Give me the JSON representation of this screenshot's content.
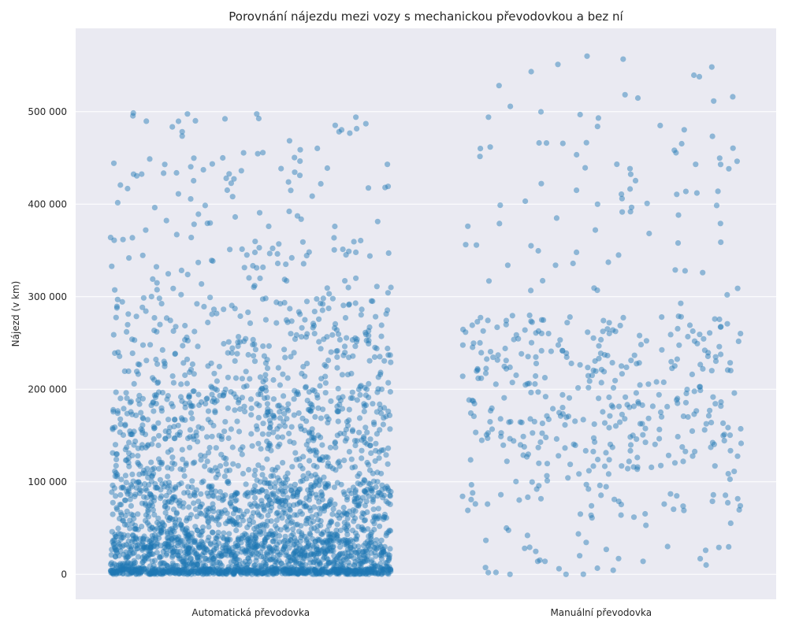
{
  "chart_data": {
    "type": "scatter",
    "title": "Porovnání nájezdu mezi vozy s mechanickou převodovkou a bez ní",
    "xlabel": "",
    "ylabel": "Nájezd (v km)",
    "categories": [
      "Automatická převodovka",
      "Manuální převodovka"
    ],
    "ylim": [
      -27000,
      590000
    ],
    "yticks": [
      0,
      100000,
      200000,
      300000,
      400000,
      500000
    ],
    "ytick_labels": [
      "0",
      "100 000",
      "200 000",
      "300 000",
      "400 000",
      "500 000"
    ],
    "grid": true,
    "point_color": "#1f77b4",
    "point_opacity": 0.45,
    "background_color": "#eaeaf2",
    "series": [
      {
        "category": "Automatická převodovka",
        "approx_count": 3000,
        "values_note_visible": false,
        "notable_points": [
          {
            "x_jitter": -0.08,
            "y": 450000
          },
          {
            "x_jitter": -0.07,
            "y": 428000
          },
          {
            "x_jitter": 0.3,
            "y": 494000
          },
          {
            "x_jitter": 0.39,
            "y": 443000
          },
          {
            "x_jitter": 0.2,
            "y": 422000
          },
          {
            "x_jitter": 0.24,
            "y": 376000
          },
          {
            "x_jitter": -0.3,
            "y": 372000
          },
          {
            "x_jitter": -0.4,
            "y": 364000
          },
          {
            "x_jitter": -0.39,
            "y": 361000
          },
          {
            "x_jitter": -0.17,
            "y": 364000
          },
          {
            "x_jitter": 0.08,
            "y": 357000
          },
          {
            "x_jitter": -0.06,
            "y": 351000
          },
          {
            "x_jitter": 0.28,
            "y": 349000
          },
          {
            "x_jitter": 0.34,
            "y": 344000
          },
          {
            "x_jitter": 0.3,
            "y": 348000
          },
          {
            "x_jitter": -0.15,
            "y": 337000
          },
          {
            "x_jitter": -0.18,
            "y": 324000
          },
          {
            "x_jitter": 0.1,
            "y": 335000
          },
          {
            "x_jitter": 0.3,
            "y": 320000
          },
          {
            "x_jitter": 0.36,
            "y": 311000
          },
          {
            "x_jitter": 0.4,
            "y": 310000
          },
          {
            "x_jitter": -0.38,
            "y": 297000
          },
          {
            "x_jitter": -0.28,
            "y": 319000
          }
        ],
        "density_bands": [
          {
            "y_from": 0,
            "y_to": 40000,
            "density": "very high"
          },
          {
            "y_from": 40000,
            "y_to": 100000,
            "density": "high"
          },
          {
            "y_from": 100000,
            "y_to": 200000,
            "density": "medium"
          },
          {
            "y_from": 200000,
            "y_to": 300000,
            "density": "low"
          },
          {
            "y_from": 300000,
            "y_to": 500000,
            "density": "sparse"
          }
        ]
      },
      {
        "category": "Manuální převodovka",
        "approx_count": 480,
        "notable_points": [
          {
            "x_jitter": -0.04,
            "y": 560000
          },
          {
            "x_jitter": -0.01,
            "y": 484000
          },
          {
            "x_jitter": 0.27,
            "y": 443000
          },
          {
            "x_jitter": -0.07,
            "y": 415000
          },
          {
            "x_jitter": 0.06,
            "y": 406000
          },
          {
            "x_jitter": -0.01,
            "y": 400000
          },
          {
            "x_jitter": -0.29,
            "y": 379000
          },
          {
            "x_jitter": 0.22,
            "y": 358000
          },
          {
            "x_jitter": -0.2,
            "y": 355000
          },
          {
            "x_jitter": -0.07,
            "y": 348000
          },
          {
            "x_jitter": 0.05,
            "y": 345000
          },
          {
            "x_jitter": -0.08,
            "y": 336000
          },
          {
            "x_jitter": 0.24,
            "y": 328000
          },
          {
            "x_jitter": 0.29,
            "y": 326000
          },
          {
            "x_jitter": -0.13,
            "y": 334000
          },
          {
            "x_jitter": -0.32,
            "y": 317000
          },
          {
            "x_jitter": 0.39,
            "y": 309000
          },
          {
            "x_jitter": 0.36,
            "y": 302000
          },
          {
            "x_jitter": -0.26,
            "y": 0
          },
          {
            "x_jitter": -0.3,
            "y": 2000
          },
          {
            "x_jitter": -0.1,
            "y": 0
          },
          {
            "x_jitter": -0.12,
            "y": 6000
          },
          {
            "x_jitter": -0.16,
            "y": 14000
          },
          {
            "x_jitter": 0.05,
            "y": 17000
          },
          {
            "x_jitter": 0.12,
            "y": 14000
          },
          {
            "x_jitter": 0.3,
            "y": 10000
          },
          {
            "x_jitter": 0.19,
            "y": 30000
          },
          {
            "x_jitter": -0.27,
            "y": 50000
          },
          {
            "x_jitter": -0.21,
            "y": 42000
          }
        ],
        "density_bands": [
          {
            "y_from": 0,
            "y_to": 60000,
            "density": "sparse"
          },
          {
            "y_from": 60000,
            "y_to": 130000,
            "density": "low"
          },
          {
            "y_from": 130000,
            "y_to": 280000,
            "density": "medium"
          },
          {
            "y_from": 280000,
            "y_to": 560000,
            "density": "sparse"
          }
        ]
      }
    ]
  }
}
